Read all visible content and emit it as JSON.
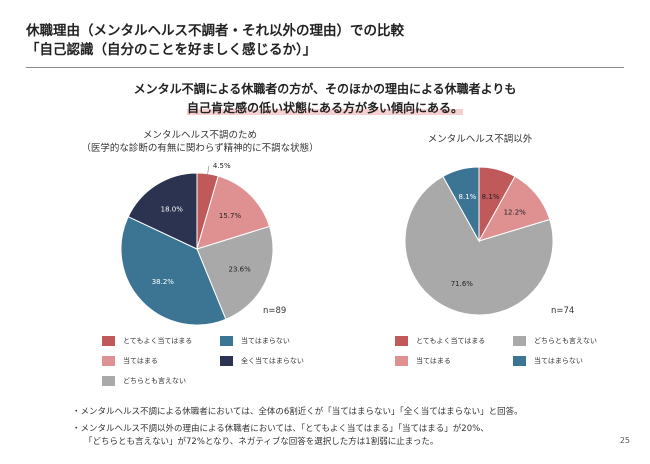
{
  "header": {
    "title_line1": "休職理由（メンタルヘルス不調者・それ以外の理由）での比較",
    "title_line2": "「自己認識（自分のことを好ましく感じるか）」"
  },
  "headline": {
    "line1": "メンタル不調による休職者の方が、そのほかの理由による休職者よりも",
    "line2": "自己肯定感の低い状態にある方が多い傾向にある。"
  },
  "colors": {
    "strongly_agree": "#c0595a",
    "agree": "#df9090",
    "neutral": "#a9a9a9",
    "disagree": "#3c7494",
    "strongly_disagree": "#2b3350"
  },
  "chart_data": [
    {
      "type": "pie",
      "title_line1": "メンタルヘルス不調のため",
      "title_line2": "（医学的な診断の有無に関わらず精神的に不調な状態）",
      "n_label": "n=89",
      "slices": [
        {
          "label": "とてもよく当てはまる",
          "value": 4.5,
          "display": "4.5%",
          "color": "#c0595a"
        },
        {
          "label": "当てはまる",
          "value": 15.7,
          "display": "15.7%",
          "color": "#df9090"
        },
        {
          "label": "どちらとも言えない",
          "value": 23.6,
          "display": "23.6%",
          "color": "#a9a9a9"
        },
        {
          "label": "当てはまらない",
          "value": 38.2,
          "display": "38.2%",
          "color": "#3c7494"
        },
        {
          "label": "全く当てはまらない",
          "value": 18.0,
          "display": "18.0%",
          "color": "#2b3350"
        }
      ],
      "legend": [
        {
          "label": "とてもよく当てはまる",
          "color": "#c0595a"
        },
        {
          "label": "当てはまらない",
          "color": "#3c7494"
        },
        {
          "label": "当てはまる",
          "color": "#df9090"
        },
        {
          "label": "全く当てはまらない",
          "color": "#2b3350"
        },
        {
          "label": "どちらとも言えない",
          "color": "#a9a9a9"
        }
      ]
    },
    {
      "type": "pie",
      "title_line1": "メンタルヘルス不調以外",
      "title_line2": "",
      "n_label": "n=74",
      "slices": [
        {
          "label": "とてもよく当てはまる",
          "value": 8.1,
          "display": "8.1%",
          "color": "#c0595a"
        },
        {
          "label": "当てはまる",
          "value": 12.2,
          "display": "12.2%",
          "color": "#df9090"
        },
        {
          "label": "どちらとも言えない",
          "value": 71.6,
          "display": "71.6%",
          "color": "#a9a9a9"
        },
        {
          "label": "当てはまらない",
          "value": 8.1,
          "display": "8.1%",
          "color": "#3c7494"
        }
      ],
      "legend": [
        {
          "label": "とてもよく当てはまる",
          "color": "#c0595a"
        },
        {
          "label": "どちらとも言えない",
          "color": "#a9a9a9"
        },
        {
          "label": "当てはまる",
          "color": "#df9090"
        },
        {
          "label": "当てはまらない",
          "color": "#3c7494"
        }
      ]
    }
  ],
  "notes": [
    "・メンタルヘルス不調による休職者においては、全体の6割近くが「当てはまらない」「全く当てはまらない」と回答。",
    "・メンタルヘルス不調以外の理由による休職者においては、「とてもよく当てはまる」「当てはまる」が20%、",
    "「どちらとも言えない」が72%となり、ネガティブな回答を選択した方は1割弱に止まった。"
  ],
  "page_number": "25"
}
